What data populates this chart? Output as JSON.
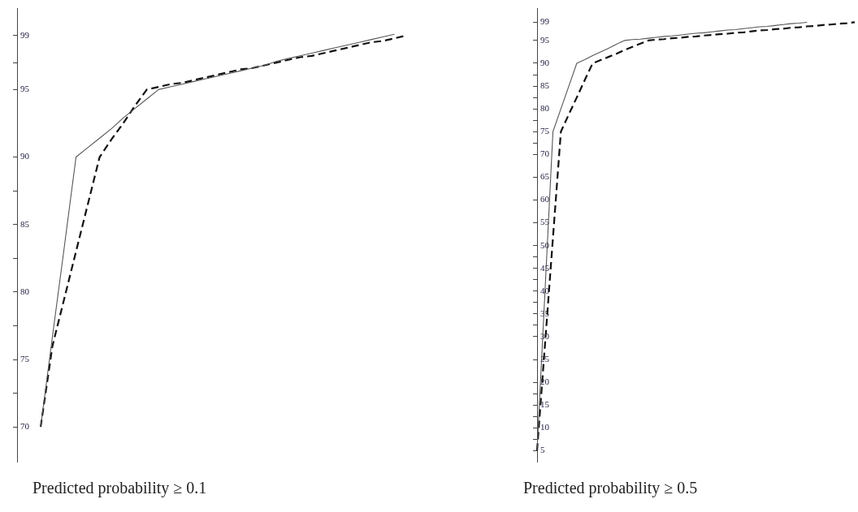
{
  "chart_data": [
    {
      "type": "line",
      "xlabel": "Predicted probability ≥ 0.1",
      "ylim": [
        67.4,
        101
      ],
      "tick_labels": "y",
      "grid": false,
      "legend": false,
      "marker": "none",
      "categories": [
        null,
        null,
        null,
        null,
        null,
        null,
        null,
        null,
        null,
        null,
        null,
        null,
        null,
        null,
        null,
        null,
        null,
        null,
        null,
        null,
        null,
        null,
        null,
        null,
        null,
        null,
        null,
        null,
        null,
        null,
        null,
        null,
        null,
        null
      ],
      "yticks": [
        70,
        {
          "value": 72.5,
          "label": null
        },
        75,
        {
          "value": 77.5,
          "label": null
        },
        80,
        {
          "value": 82.5,
          "label": null
        },
        85,
        {
          "value": 87.5,
          "label": null
        },
        90,
        95,
        {
          "value": 97,
          "label": null
        },
        99
      ],
      "series": [
        {
          "color": "#555555",
          "line_style": "solid",
          "values": [
            null,
            null,
            70,
            76.7,
            83.3,
            90,
            90.7,
            91.4,
            92.1,
            92.9,
            93.6,
            94.3,
            95,
            95.2,
            95.4,
            95.6,
            95.8,
            96.0,
            96.2,
            96.4,
            96.6,
            96.8,
            97.1,
            97.3,
            97.5,
            97.7,
            97.9,
            98.1,
            98.3,
            98.5,
            98.7,
            98.9,
            99.1,
            null
          ]
        },
        {
          "color": "#111111",
          "line_style": "dashed",
          "values": [
            null,
            null,
            70,
            76,
            79.5,
            83,
            86.5,
            90,
            91.3,
            92.5,
            93.8,
            95,
            95.2,
            95.4,
            95.5,
            95.7,
            95.9,
            96.1,
            96.3,
            96.5,
            96.6,
            96.8,
            97.0,
            97.2,
            97.4,
            97.5,
            97.7,
            97.9,
            98.1,
            98.3,
            98.5,
            98.6,
            98.8,
            99
          ]
        }
      ]
    },
    {
      "type": "line",
      "xlabel": "Predicted probability ≥ 0.5",
      "ylim": [
        2.5,
        102
      ],
      "tick_labels": "y",
      "grid": false,
      "legend": false,
      "marker": "none",
      "categories": [
        null,
        null,
        null,
        null,
        null,
        null,
        null,
        null,
        null,
        null,
        null,
        null,
        null,
        null,
        null,
        null,
        null,
        null,
        null,
        null,
        null,
        null,
        null,
        null,
        null,
        null,
        null,
        null,
        null,
        null,
        null,
        null,
        null,
        null,
        null,
        null,
        null,
        null,
        null,
        null,
        null
      ],
      "yticks": [
        5,
        {
          "value": 7.5,
          "label": null
        },
        10,
        {
          "value": 12.5,
          "label": null
        },
        15,
        {
          "value": 17.5,
          "label": null
        },
        20,
        25,
        30,
        {
          "value": 32.5,
          "label": null
        },
        35,
        {
          "value": 37.5,
          "label": null
        },
        40,
        {
          "value": 42.5,
          "label": null
        },
        45,
        {
          "value": 47.5,
          "label": null
        },
        50,
        55,
        60,
        65,
        70,
        {
          "value": 72.5,
          "label": null
        },
        75,
        {
          "value": 77.5,
          "label": null
        },
        80,
        {
          "value": 82.5,
          "label": null
        },
        85,
        {
          "value": 87.5,
          "label": null
        },
        90,
        95,
        99
      ],
      "series": [
        {
          "color": "#555555",
          "line_style": "solid",
          "values": [
            5,
            40,
            75,
            80,
            85,
            90,
            90.8,
            91.7,
            92.5,
            93.3,
            94.2,
            95,
            95.2,
            95.3,
            95.5,
            95.7,
            95.9,
            96.0,
            96.2,
            96.4,
            96.6,
            96.7,
            96.9,
            97.1,
            97.3,
            97.4,
            97.6,
            97.8,
            98.0,
            98.1,
            98.3,
            98.5,
            98.7,
            98.8,
            99,
            null,
            null,
            null,
            null,
            null,
            null
          ]
        },
        {
          "color": "#111111",
          "line_style": "dashed",
          "values": [
            5,
            28.3,
            51.7,
            75,
            78.8,
            82.5,
            86.3,
            90,
            90.7,
            91.4,
            92.1,
            92.9,
            93.6,
            94.3,
            95,
            95.2,
            95.3,
            95.5,
            95.6,
            95.8,
            95.9,
            96.1,
            96.2,
            96.4,
            96.5,
            96.7,
            96.8,
            97.0,
            97.2,
            97.3,
            97.5,
            97.6,
            97.8,
            97.9,
            98.1,
            98.2,
            98.4,
            98.5,
            98.7,
            98.8,
            99
          ]
        }
      ]
    }
  ]
}
